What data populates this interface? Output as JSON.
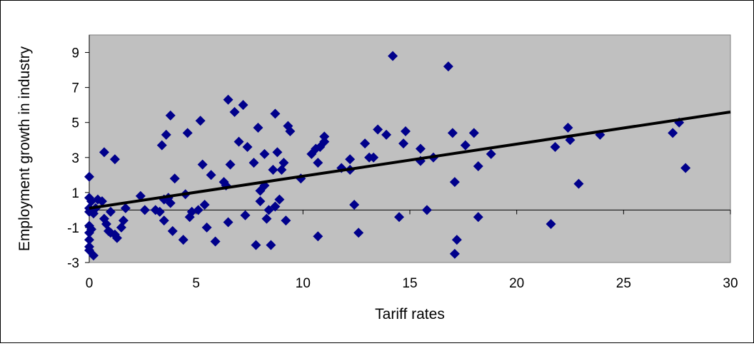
{
  "chart_data": {
    "type": "scatter",
    "title": "",
    "xlabel": "Tariff rates",
    "ylabel": "Employment growth in industry",
    "xlim": [
      0,
      30
    ],
    "ylim": [
      -3,
      10
    ],
    "x_ticks": [
      0,
      5,
      10,
      15,
      20,
      25,
      30
    ],
    "y_ticks": [
      -3,
      -1,
      1,
      3,
      5,
      7,
      9
    ],
    "x_tick_labels": [
      "0",
      "5",
      "10",
      "15",
      "20",
      "25",
      "30"
    ],
    "y_tick_labels": [
      "-3",
      "-1",
      "1",
      "3",
      "5",
      "7",
      "9"
    ],
    "grid": false,
    "legend": "none",
    "plot_background": "#c0c0c0",
    "marker_color": "#00008b",
    "trendline_color": "#000000",
    "series": [
      {
        "points": [
          [
            0,
            1.9
          ],
          [
            0,
            0.7
          ],
          [
            0,
            0.1
          ],
          [
            0,
            -0.1
          ],
          [
            0,
            -0.9
          ],
          [
            0,
            -1.3
          ],
          [
            0,
            -1.7
          ],
          [
            0,
            -2.1
          ],
          [
            0,
            -2.3
          ],
          [
            0.1,
            -1.1
          ],
          [
            0.1,
            0.5
          ],
          [
            0.2,
            -0.2
          ],
          [
            0.2,
            -2.6
          ],
          [
            0.3,
            0.1
          ],
          [
            0.4,
            0.6
          ],
          [
            0.6,
            0.5
          ],
          [
            0.7,
            3.3
          ],
          [
            0.7,
            -0.5
          ],
          [
            0.8,
            -0.8
          ],
          [
            0.9,
            -1.2
          ],
          [
            1.0,
            -1.3
          ],
          [
            1.0,
            -0.1
          ],
          [
            1.2,
            -1.4
          ],
          [
            1.2,
            2.9
          ],
          [
            1.3,
            -1.6
          ],
          [
            1.5,
            -1.0
          ],
          [
            1.6,
            -0.6
          ],
          [
            1.7,
            0.1
          ],
          [
            2.4,
            0.8
          ],
          [
            2.6,
            0.0
          ],
          [
            3.1,
            0.0
          ],
          [
            3.3,
            -0.1
          ],
          [
            3.4,
            3.7
          ],
          [
            3.5,
            -0.6
          ],
          [
            3.5,
            0.6
          ],
          [
            3.6,
            4.3
          ],
          [
            3.7,
            0.7
          ],
          [
            3.8,
            5.4
          ],
          [
            3.8,
            0.4
          ],
          [
            3.9,
            -1.2
          ],
          [
            4.0,
            1.8
          ],
          [
            4.4,
            -1.7
          ],
          [
            4.5,
            0.9
          ],
          [
            4.6,
            4.4
          ],
          [
            4.7,
            -0.4
          ],
          [
            4.8,
            -0.1
          ],
          [
            5.1,
            0.0
          ],
          [
            5.2,
            5.1
          ],
          [
            5.3,
            2.6
          ],
          [
            5.4,
            0.3
          ],
          [
            5.5,
            -1.0
          ],
          [
            5.7,
            2.0
          ],
          [
            5.9,
            -1.8
          ],
          [
            6.3,
            1.6
          ],
          [
            6.4,
            1.4
          ],
          [
            6.5,
            -0.7
          ],
          [
            6.5,
            6.3
          ],
          [
            6.6,
            2.6
          ],
          [
            6.8,
            5.6
          ],
          [
            7.0,
            3.9
          ],
          [
            7.2,
            6.0
          ],
          [
            7.3,
            -0.3
          ],
          [
            7.4,
            3.6
          ],
          [
            7.7,
            2.7
          ],
          [
            7.8,
            -2.0
          ],
          [
            7.9,
            4.7
          ],
          [
            8.0,
            1.1
          ],
          [
            8.0,
            0.5
          ],
          [
            8.2,
            1.4
          ],
          [
            8.2,
            3.2
          ],
          [
            8.3,
            -0.5
          ],
          [
            8.4,
            0.0
          ],
          [
            8.5,
            -2.0
          ],
          [
            8.6,
            2.3
          ],
          [
            8.7,
            0.2
          ],
          [
            8.7,
            5.5
          ],
          [
            8.8,
            3.3
          ],
          [
            8.9,
            0.6
          ],
          [
            9.0,
            2.3
          ],
          [
            9.1,
            2.7
          ],
          [
            9.2,
            -0.6
          ],
          [
            9.3,
            4.8
          ],
          [
            9.4,
            4.5
          ],
          [
            9.9,
            1.8
          ],
          [
            10.4,
            3.2
          ],
          [
            10.6,
            3.5
          ],
          [
            10.7,
            -1.5
          ],
          [
            10.7,
            2.7
          ],
          [
            10.8,
            3.6
          ],
          [
            11.0,
            3.9
          ],
          [
            11.0,
            4.2
          ],
          [
            11.8,
            2.4
          ],
          [
            12.2,
            2.9
          ],
          [
            12.2,
            2.3
          ],
          [
            12.4,
            0.3
          ],
          [
            12.6,
            -1.3
          ],
          [
            12.9,
            3.8
          ],
          [
            13.1,
            3.0
          ],
          [
            13.3,
            3.0
          ],
          [
            13.5,
            4.6
          ],
          [
            13.9,
            4.3
          ],
          [
            14.2,
            8.8
          ],
          [
            14.5,
            -0.4
          ],
          [
            14.7,
            3.8
          ],
          [
            14.8,
            4.5
          ],
          [
            15.5,
            2.8
          ],
          [
            15.5,
            3.5
          ],
          [
            15.8,
            0.0
          ],
          [
            16.1,
            3.0
          ],
          [
            16.8,
            8.2
          ],
          [
            17.0,
            4.4
          ],
          [
            17.1,
            1.6
          ],
          [
            17.2,
            -1.7
          ],
          [
            17.1,
            -2.5
          ],
          [
            17.6,
            3.7
          ],
          [
            18.0,
            4.4
          ],
          [
            18.2,
            2.5
          ],
          [
            18.2,
            -0.4
          ],
          [
            18.8,
            3.2
          ],
          [
            21.6,
            -0.8
          ],
          [
            21.8,
            3.6
          ],
          [
            22.4,
            4.7
          ],
          [
            22.5,
            4.0
          ],
          [
            22.9,
            1.5
          ],
          [
            23.9,
            4.3
          ],
          [
            27.3,
            4.4
          ],
          [
            27.6,
            5.0
          ],
          [
            27.9,
            2.4
          ]
        ]
      }
    ],
    "trendline": {
      "x": [
        0,
        30
      ],
      "y": [
        0.1,
        5.6
      ]
    }
  }
}
